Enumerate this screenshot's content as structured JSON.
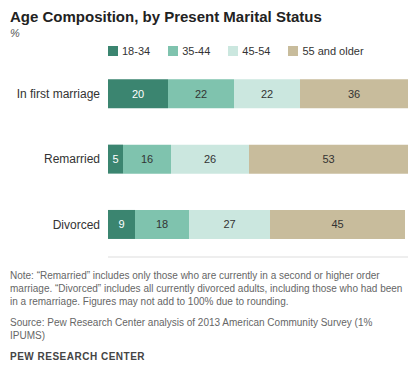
{
  "chart_data": {
    "type": "bar",
    "orientation": "horizontal",
    "stacked": true,
    "data_labels": true,
    "tick_labels": "y",
    "legend": "top",
    "title": "Age Composition, by Present Marital Status",
    "subtitle": "%",
    "categories": [
      "In first marriage",
      "Remarried",
      "Divorced"
    ],
    "series": [
      {
        "name": "18-34",
        "color": "#3b8570",
        "values": [
          20,
          5,
          9
        ]
      },
      {
        "name": "35-44",
        "color": "#7fc3ae",
        "values": [
          22,
          16,
          18
        ]
      },
      {
        "name": "45-54",
        "color": "#cbe7df",
        "values": [
          22,
          26,
          27
        ]
      },
      {
        "name": "55 and older",
        "color": "#c8bc9c",
        "values": [
          36,
          53,
          45
        ]
      }
    ],
    "xlim": [
      0,
      100
    ],
    "note": "Note: “Remarried” includes only those who are currently in a second or higher order marriage. “Divorced” includes all currently divorced adults, including those who had been in a remarriage. Figures may not add to 100% due to rounding.",
    "source": "Source: Pew Research Center analysis of 2013 American Community Survey (1% IPUMS)",
    "footer": "PEW RESEARCH CENTER"
  }
}
